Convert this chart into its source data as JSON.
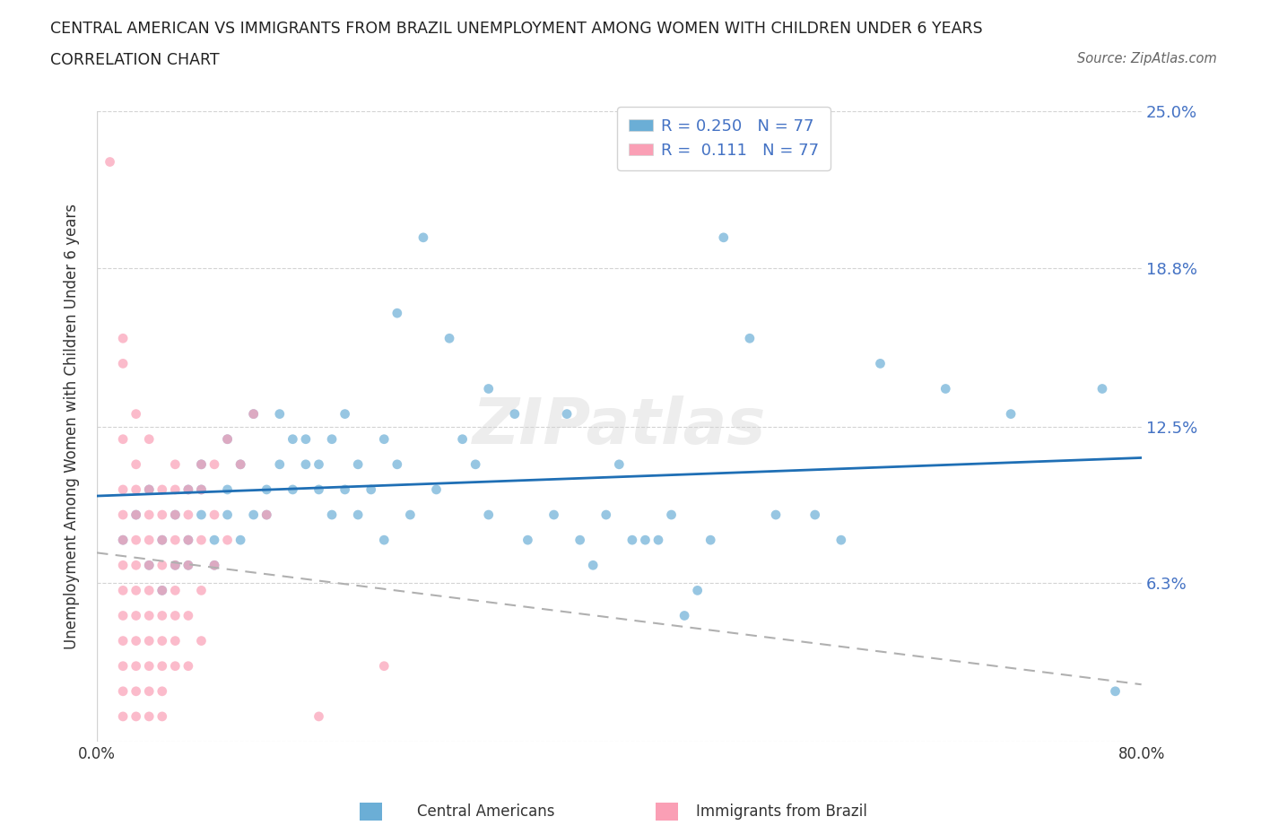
{
  "title_line1": "CENTRAL AMERICAN VS IMMIGRANTS FROM BRAZIL UNEMPLOYMENT AMONG WOMEN WITH CHILDREN UNDER 6 YEARS",
  "title_line2": "CORRELATION CHART",
  "source": "Source: ZipAtlas.com",
  "ylabel": "Unemployment Among Women with Children Under 6 years",
  "xlim": [
    0.0,
    0.8
  ],
  "ylim": [
    0.0,
    0.25
  ],
  "yticks": [
    0.0,
    0.063,
    0.125,
    0.188,
    0.25
  ],
  "ytick_labels": [
    "",
    "6.3%",
    "12.5%",
    "18.8%",
    "25.0%"
  ],
  "xticks": [
    0.0,
    0.1,
    0.2,
    0.3,
    0.4,
    0.5,
    0.6,
    0.7,
    0.8
  ],
  "xtick_labels": [
    "0.0%",
    "",
    "",
    "",
    "",
    "",
    "",
    "",
    "80.0%"
  ],
  "watermark": "ZIPatlas",
  "legend_r1": "R = 0.250   N = 77",
  "legend_r2": "R =  0.111   N = 77",
  "blue_color": "#6baed6",
  "pink_color": "#fa9fb5",
  "trend_blue": "#1f6fb5",
  "trend_pink": "#b0b0b0",
  "blue_scatter": [
    [
      0.02,
      0.08
    ],
    [
      0.03,
      0.09
    ],
    [
      0.04,
      0.07
    ],
    [
      0.04,
      0.1
    ],
    [
      0.05,
      0.08
    ],
    [
      0.05,
      0.06
    ],
    [
      0.06,
      0.07
    ],
    [
      0.06,
      0.09
    ],
    [
      0.07,
      0.1
    ],
    [
      0.07,
      0.08
    ],
    [
      0.07,
      0.07
    ],
    [
      0.08,
      0.09
    ],
    [
      0.08,
      0.1
    ],
    [
      0.08,
      0.11
    ],
    [
      0.09,
      0.08
    ],
    [
      0.09,
      0.07
    ],
    [
      0.1,
      0.09
    ],
    [
      0.1,
      0.1
    ],
    [
      0.1,
      0.12
    ],
    [
      0.11,
      0.08
    ],
    [
      0.11,
      0.11
    ],
    [
      0.12,
      0.09
    ],
    [
      0.12,
      0.13
    ],
    [
      0.13,
      0.1
    ],
    [
      0.13,
      0.09
    ],
    [
      0.14,
      0.11
    ],
    [
      0.14,
      0.13
    ],
    [
      0.15,
      0.12
    ],
    [
      0.15,
      0.1
    ],
    [
      0.16,
      0.11
    ],
    [
      0.16,
      0.12
    ],
    [
      0.17,
      0.1
    ],
    [
      0.17,
      0.11
    ],
    [
      0.18,
      0.09
    ],
    [
      0.18,
      0.12
    ],
    [
      0.19,
      0.1
    ],
    [
      0.19,
      0.13
    ],
    [
      0.2,
      0.11
    ],
    [
      0.2,
      0.09
    ],
    [
      0.21,
      0.1
    ],
    [
      0.22,
      0.12
    ],
    [
      0.22,
      0.08
    ],
    [
      0.23,
      0.11
    ],
    [
      0.23,
      0.17
    ],
    [
      0.24,
      0.09
    ],
    [
      0.25,
      0.2
    ],
    [
      0.26,
      0.1
    ],
    [
      0.27,
      0.16
    ],
    [
      0.28,
      0.12
    ],
    [
      0.29,
      0.11
    ],
    [
      0.3,
      0.09
    ],
    [
      0.3,
      0.14
    ],
    [
      0.32,
      0.13
    ],
    [
      0.33,
      0.08
    ],
    [
      0.35,
      0.09
    ],
    [
      0.36,
      0.13
    ],
    [
      0.37,
      0.08
    ],
    [
      0.38,
      0.07
    ],
    [
      0.39,
      0.09
    ],
    [
      0.4,
      0.11
    ],
    [
      0.41,
      0.08
    ],
    [
      0.42,
      0.08
    ],
    [
      0.43,
      0.08
    ],
    [
      0.44,
      0.09
    ],
    [
      0.45,
      0.05
    ],
    [
      0.46,
      0.06
    ],
    [
      0.47,
      0.08
    ],
    [
      0.48,
      0.2
    ],
    [
      0.5,
      0.16
    ],
    [
      0.52,
      0.09
    ],
    [
      0.55,
      0.09
    ],
    [
      0.57,
      0.08
    ],
    [
      0.6,
      0.15
    ],
    [
      0.65,
      0.14
    ],
    [
      0.7,
      0.13
    ],
    [
      0.77,
      0.14
    ],
    [
      0.78,
      0.02
    ]
  ],
  "pink_scatter": [
    [
      0.01,
      0.23
    ],
    [
      0.02,
      0.16
    ],
    [
      0.02,
      0.15
    ],
    [
      0.02,
      0.1
    ],
    [
      0.02,
      0.09
    ],
    [
      0.02,
      0.12
    ],
    [
      0.02,
      0.08
    ],
    [
      0.02,
      0.07
    ],
    [
      0.02,
      0.06
    ],
    [
      0.02,
      0.05
    ],
    [
      0.02,
      0.04
    ],
    [
      0.02,
      0.03
    ],
    [
      0.02,
      0.02
    ],
    [
      0.02,
      0.01
    ],
    [
      0.03,
      0.13
    ],
    [
      0.03,
      0.11
    ],
    [
      0.03,
      0.1
    ],
    [
      0.03,
      0.09
    ],
    [
      0.03,
      0.08
    ],
    [
      0.03,
      0.07
    ],
    [
      0.03,
      0.06
    ],
    [
      0.03,
      0.05
    ],
    [
      0.03,
      0.04
    ],
    [
      0.03,
      0.03
    ],
    [
      0.03,
      0.02
    ],
    [
      0.03,
      0.01
    ],
    [
      0.04,
      0.12
    ],
    [
      0.04,
      0.1
    ],
    [
      0.04,
      0.09
    ],
    [
      0.04,
      0.08
    ],
    [
      0.04,
      0.07
    ],
    [
      0.04,
      0.06
    ],
    [
      0.04,
      0.05
    ],
    [
      0.04,
      0.04
    ],
    [
      0.04,
      0.03
    ],
    [
      0.04,
      0.02
    ],
    [
      0.04,
      0.01
    ],
    [
      0.05,
      0.1
    ],
    [
      0.05,
      0.09
    ],
    [
      0.05,
      0.08
    ],
    [
      0.05,
      0.07
    ],
    [
      0.05,
      0.06
    ],
    [
      0.05,
      0.05
    ],
    [
      0.05,
      0.04
    ],
    [
      0.05,
      0.03
    ],
    [
      0.05,
      0.02
    ],
    [
      0.05,
      0.01
    ],
    [
      0.06,
      0.11
    ],
    [
      0.06,
      0.1
    ],
    [
      0.06,
      0.09
    ],
    [
      0.06,
      0.08
    ],
    [
      0.06,
      0.07
    ],
    [
      0.06,
      0.06
    ],
    [
      0.06,
      0.05
    ],
    [
      0.06,
      0.04
    ],
    [
      0.06,
      0.03
    ],
    [
      0.07,
      0.1
    ],
    [
      0.07,
      0.09
    ],
    [
      0.07,
      0.08
    ],
    [
      0.07,
      0.07
    ],
    [
      0.07,
      0.05
    ],
    [
      0.07,
      0.03
    ],
    [
      0.08,
      0.11
    ],
    [
      0.08,
      0.1
    ],
    [
      0.08,
      0.08
    ],
    [
      0.08,
      0.06
    ],
    [
      0.08,
      0.04
    ],
    [
      0.09,
      0.11
    ],
    [
      0.09,
      0.09
    ],
    [
      0.09,
      0.07
    ],
    [
      0.1,
      0.12
    ],
    [
      0.1,
      0.08
    ],
    [
      0.11,
      0.11
    ],
    [
      0.12,
      0.13
    ],
    [
      0.13,
      0.09
    ],
    [
      0.17,
      0.01
    ],
    [
      0.22,
      0.03
    ]
  ]
}
